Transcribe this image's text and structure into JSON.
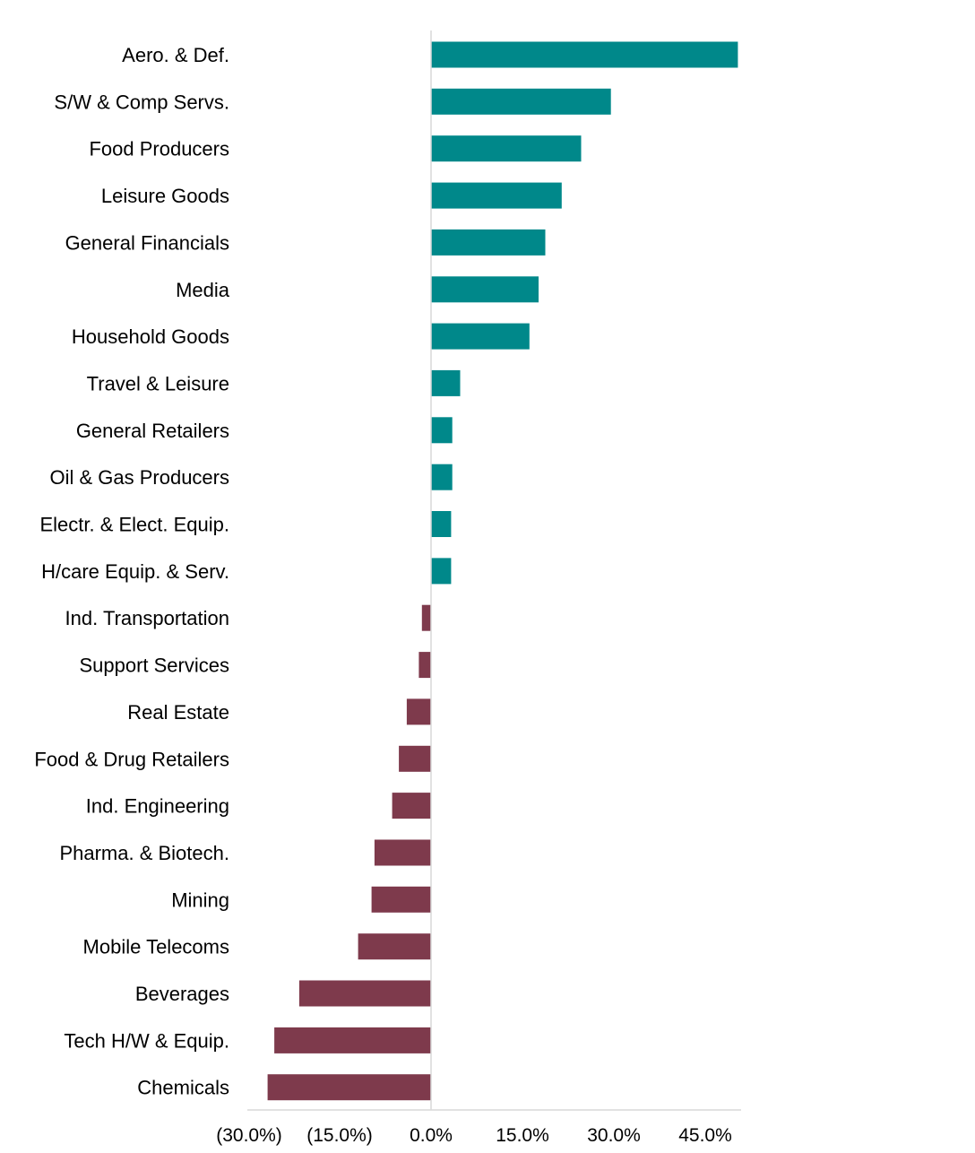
{
  "chart_data": {
    "type": "bar",
    "orientation": "horizontal",
    "title": "",
    "xlabel": "",
    "ylabel": "",
    "xlim": [
      -30,
      51
    ],
    "grid": false,
    "legend": "none",
    "categories": [
      "Aero. & Def.",
      "S/W & Comp Servs.",
      "Food Producers",
      "Leisure Goods",
      "General Financials",
      "Media",
      "Household Goods",
      "Travel & Leisure",
      "General Retailers",
      "Oil & Gas Producers",
      "Electr. & Elect. Equip.",
      "H/care Equip. & Serv.",
      "Ind. Transportation",
      "Support Services",
      "Real Estate",
      "Food & Drug Retailers",
      "Ind. Engineering",
      "Pharma. & Biotech.",
      "Mining",
      "Mobile Telecoms",
      "Beverages",
      "Tech H/W & Equip.",
      "Chemicals"
    ],
    "values": [
      50.5,
      29.6,
      24.7,
      21.5,
      18.8,
      17.7,
      16.2,
      4.8,
      3.5,
      3.5,
      3.3,
      3.3,
      -1.5,
      -2.0,
      -4.0,
      -5.3,
      -6.4,
      -9.3,
      -9.8,
      -12.0,
      -21.7,
      -25.8,
      -26.9
    ],
    "x_ticks": [
      {
        "value": -30,
        "label": "(30.0%)"
      },
      {
        "value": -15,
        "label": "(15.0%)"
      },
      {
        "value": 0,
        "label": "0.0%"
      },
      {
        "value": 15,
        "label": "15.0%"
      },
      {
        "value": 30,
        "label": "30.0%"
      },
      {
        "value": 45,
        "label": "45.0%"
      }
    ],
    "colors": {
      "positive": "#00888A",
      "negative": "#7E3A4C",
      "axis": "#D9D9D9"
    }
  }
}
